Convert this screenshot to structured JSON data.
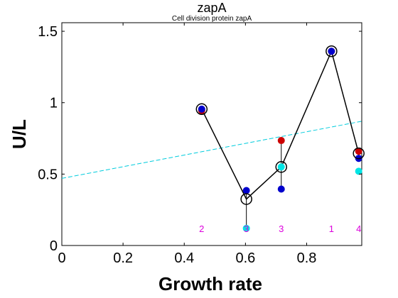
{
  "chart_data": {
    "type": "line",
    "title": "zapA",
    "subtitle": "Cell division protein zapA",
    "xlabel": "Growth rate",
    "ylabel": "U/L",
    "xlim": [
      0,
      0.98
    ],
    "ylim": [
      0,
      1.56
    ],
    "xticks": [
      "0",
      "0.2",
      "0.4",
      "0.6",
      "0.8"
    ],
    "yticks": [
      "0",
      "0.5",
      "1",
      "1.5"
    ],
    "grid": false,
    "legend": "none",
    "series": [
      {
        "style": "black-line-circles",
        "color": "#000000",
        "x": [
          0.457,
          0.603,
          0.717,
          0.881,
          0.97
        ],
        "y": [
          0.955,
          0.325,
          0.55,
          1.36,
          0.645
        ]
      },
      {
        "style": "red-dots",
        "color": "#cc0000",
        "x": [
          0.457,
          0.717,
          0.881,
          0.97
        ],
        "y": [
          0.945,
          0.735,
          1.36,
          0.66
        ]
      },
      {
        "style": "blue-dots",
        "color": "#0000cc",
        "x": [
          0.457,
          0.603,
          0.717,
          0.881,
          0.97
        ],
        "y": [
          0.955,
          0.385,
          0.395,
          1.36,
          0.61
        ]
      },
      {
        "style": "cyan-dots",
        "color": "#00e5e5",
        "x": [
          0.603,
          0.717,
          0.97
        ],
        "y": [
          0.12,
          0.55,
          0.52
        ]
      },
      {
        "style": "cyan-dashed-fit",
        "color": "#00ccdd",
        "x": [
          0,
          0.98
        ],
        "y": [
          0.47,
          0.87
        ]
      }
    ],
    "vertical_ranges": [
      {
        "x": 0.603,
        "y": [
          0.12,
          0.385
        ]
      },
      {
        "x": 0.717,
        "y": [
          0.395,
          0.735
        ]
      },
      {
        "x": 0.97,
        "y": [
          0.61,
          0.66
        ]
      }
    ],
    "annotations": [
      {
        "text": "2",
        "x": 0.457,
        "y": 0.12
      },
      {
        "text": "3",
        "x": 0.603,
        "y": 0.12
      },
      {
        "text": "3",
        "x": 0.717,
        "y": 0.12
      },
      {
        "text": "1",
        "x": 0.881,
        "y": 0.12
      },
      {
        "text": "4",
        "x": 0.97,
        "y": 0.12
      }
    ],
    "annotation_color": "#dd00dd"
  }
}
